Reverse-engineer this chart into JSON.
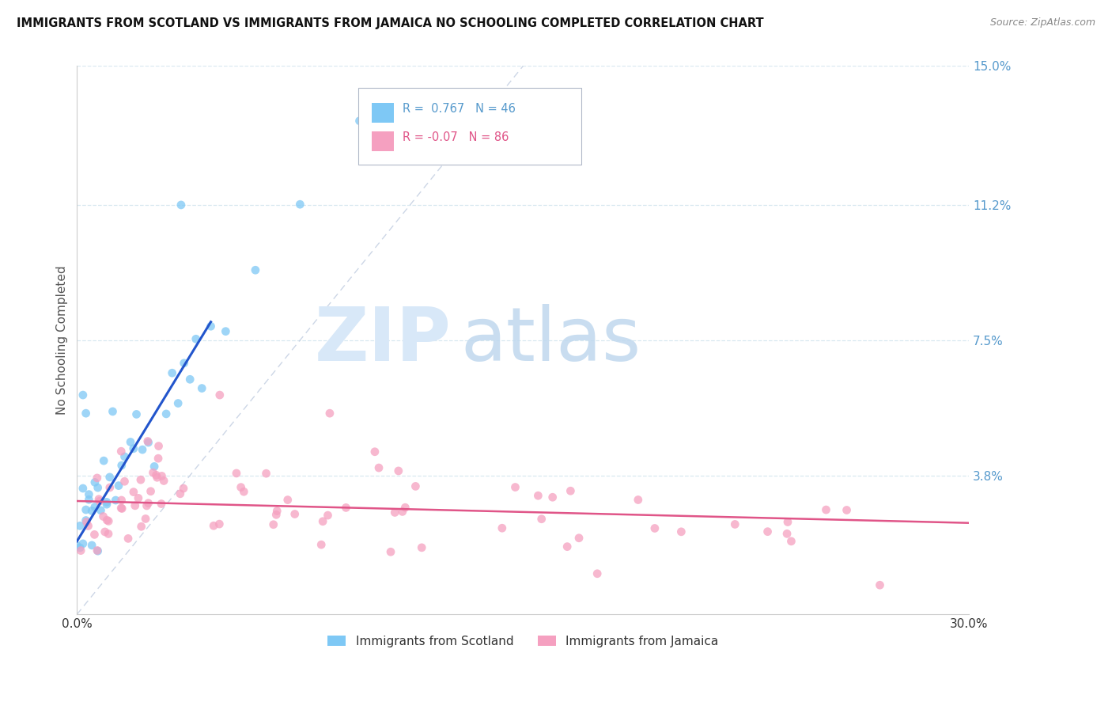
{
  "title": "IMMIGRANTS FROM SCOTLAND VS IMMIGRANTS FROM JAMAICA NO SCHOOLING COMPLETED CORRELATION CHART",
  "source": "Source: ZipAtlas.com",
  "ylabel": "No Schooling Completed",
  "xlim": [
    0.0,
    0.3
  ],
  "ylim": [
    0.0,
    0.15
  ],
  "xtick_labels": [
    "0.0%",
    "30.0%"
  ],
  "xtick_values": [
    0.0,
    0.3
  ],
  "ytick_labels": [
    "3.8%",
    "7.5%",
    "11.2%",
    "15.0%"
  ],
  "ytick_values": [
    0.038,
    0.075,
    0.112,
    0.15
  ],
  "scotland_color": "#7ec8f5",
  "scotland_line_color": "#2255cc",
  "jamaica_color": "#f5a0c0",
  "jamaica_line_color": "#e05588",
  "scotland_R": 0.767,
  "scotland_N": 46,
  "jamaica_R": -0.07,
  "jamaica_N": 86,
  "legend_labels": [
    "Immigrants from Scotland",
    "Immigrants from Jamaica"
  ],
  "diagonal_color": "#c0cce0",
  "grid_color": "#d8e8f0",
  "spine_color": "#cccccc",
  "ytick_color": "#5599cc",
  "xtick_color": "#333333",
  "title_color": "#111111",
  "source_color": "#888888",
  "watermark_zip_color": "#d8e8f8",
  "watermark_atlas_color": "#c0d8ee"
}
